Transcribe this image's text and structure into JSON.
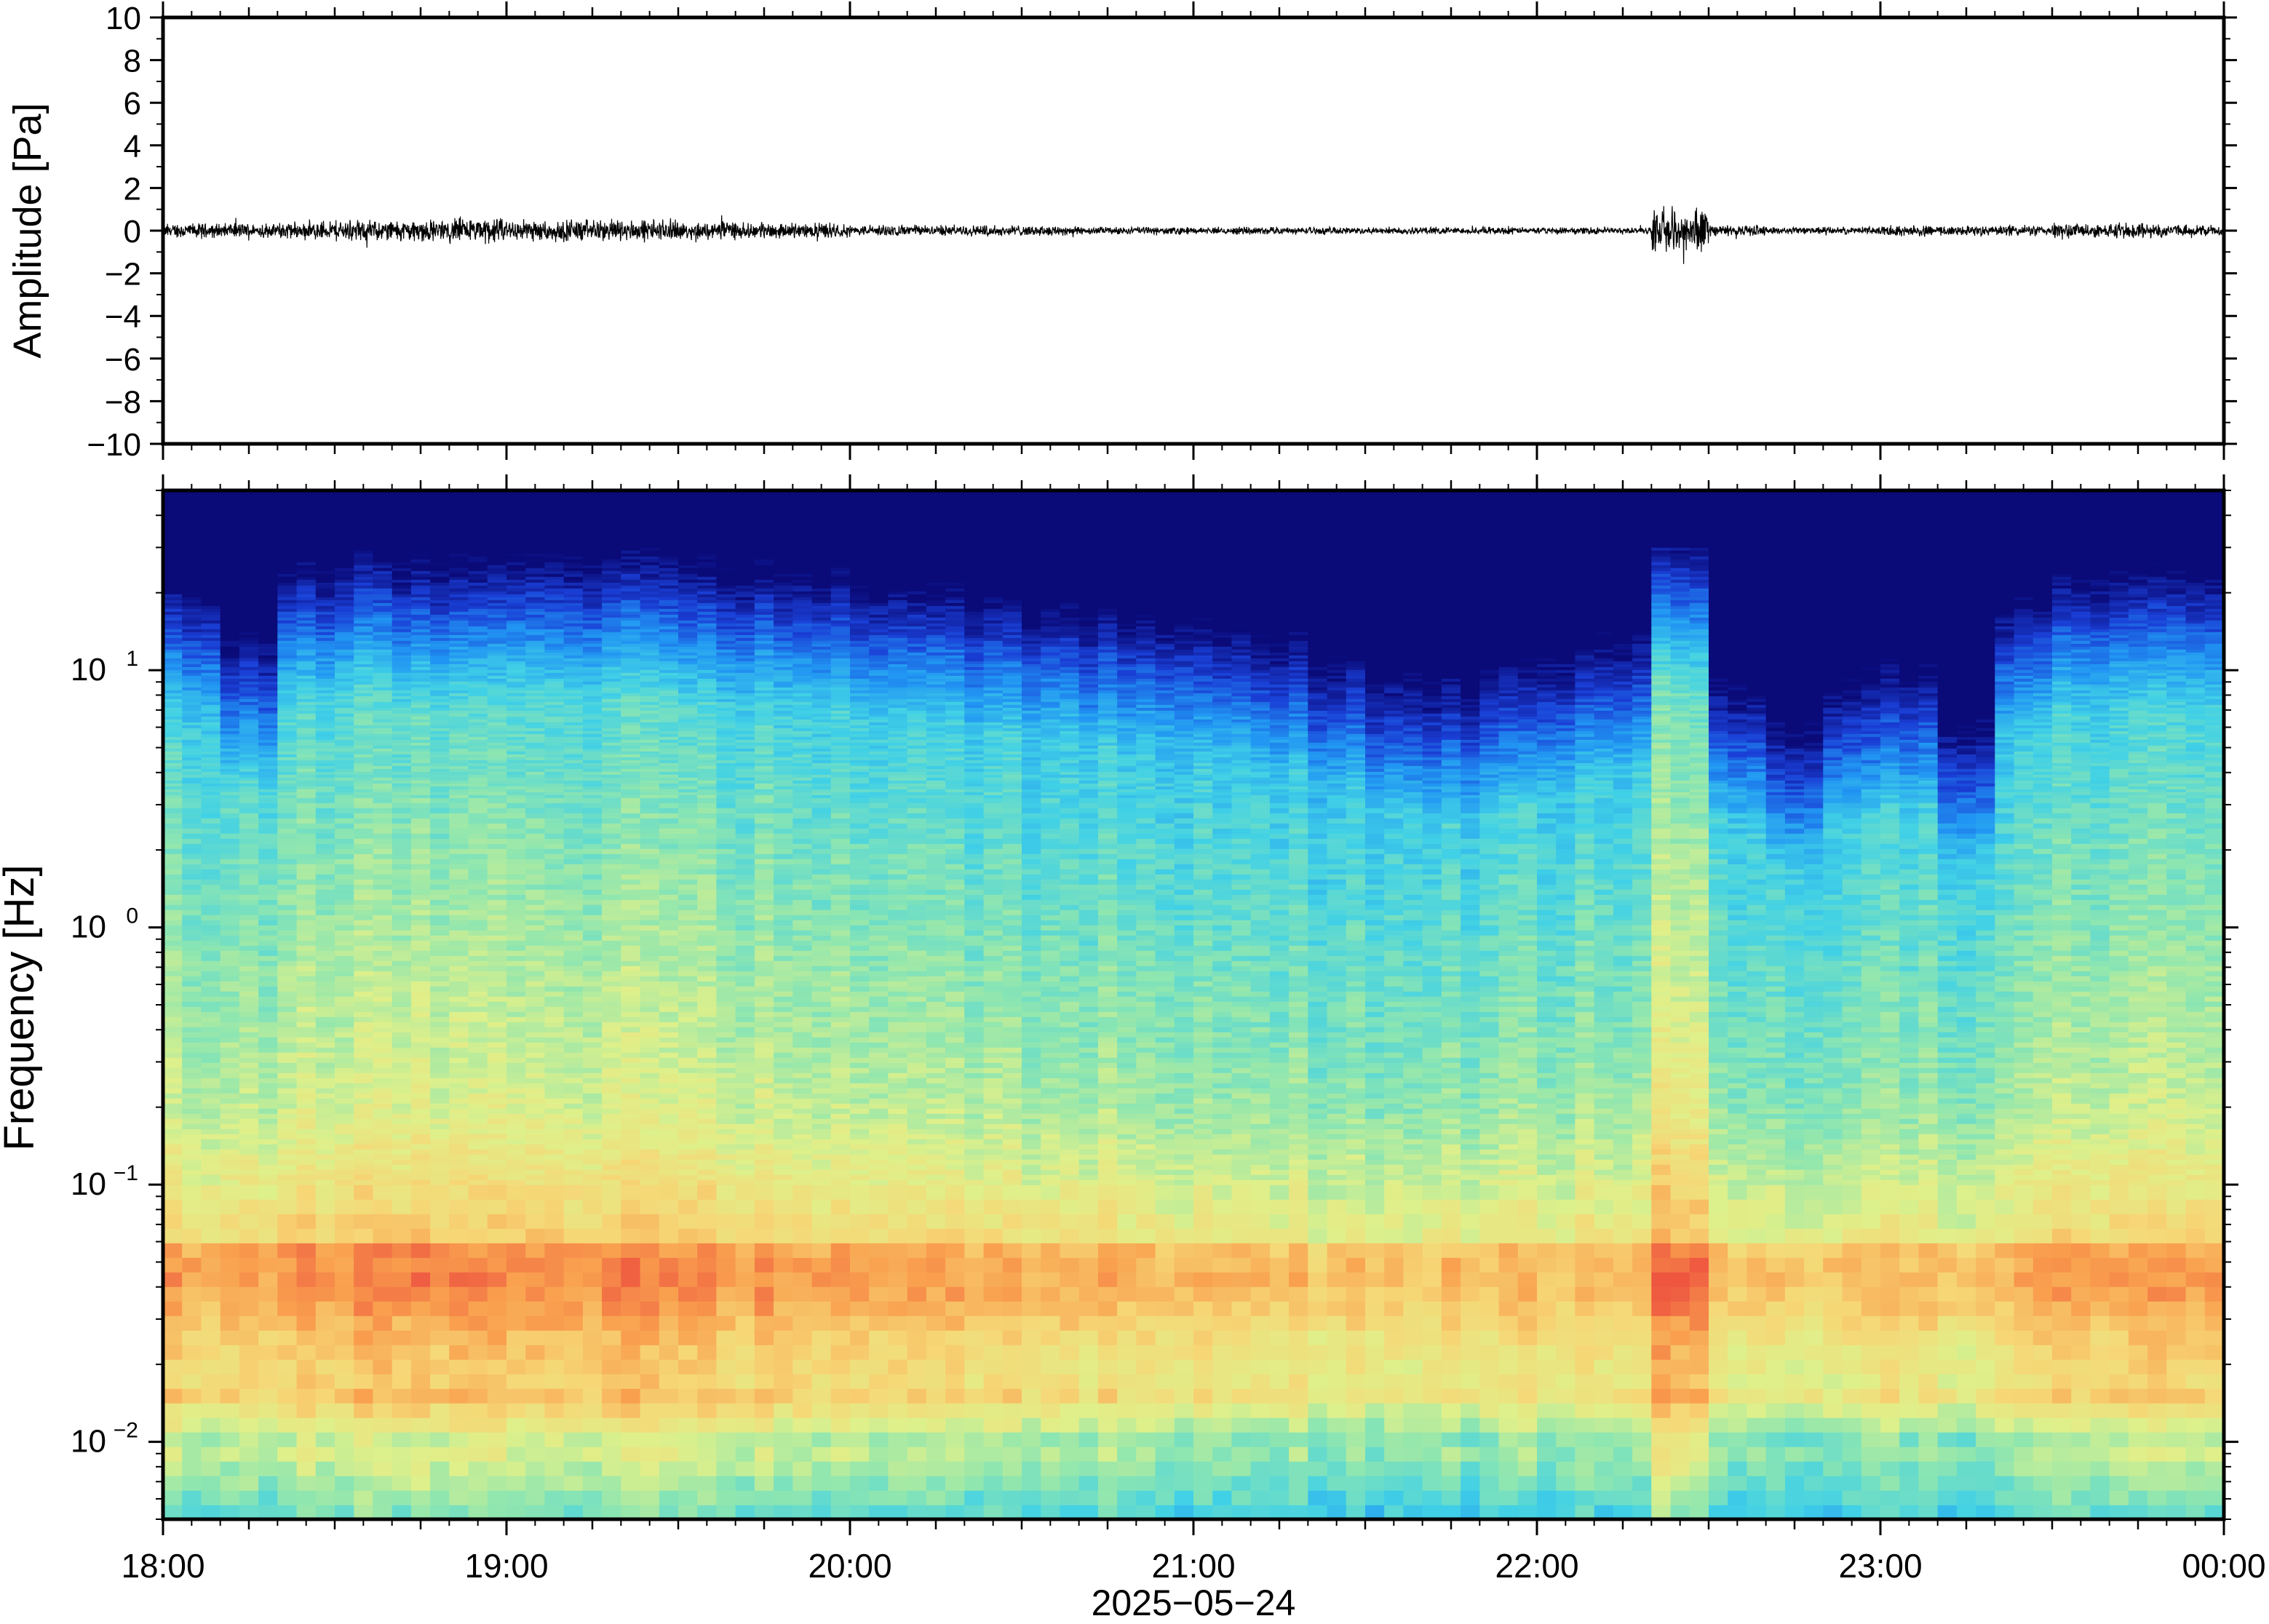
{
  "chart_data": [
    {
      "type": "line",
      "ylabel": "Amplitude [Pa]",
      "ylim": [
        -10,
        10
      ],
      "yticks": [
        -10,
        -8,
        -6,
        -4,
        -2,
        0,
        2,
        4,
        6,
        8,
        10
      ],
      "ytick_labels": [
        "−10",
        "−8",
        "−6",
        "−4",
        "−2",
        "0",
        "2",
        "4",
        "6",
        "8",
        "10"
      ],
      "xlim": [
        "18:00",
        "00:00"
      ],
      "series": [
        {
          "description": "waveform envelope, approx. peak amplitude per 10-minute block (Pa)",
          "x": [
            "18:00",
            "18:10",
            "18:20",
            "18:30",
            "18:40",
            "18:50",
            "19:00",
            "19:10",
            "19:20",
            "19:30",
            "19:40",
            "19:50",
            "20:00",
            "20:10",
            "20:20",
            "20:30",
            "20:40",
            "20:50",
            "21:00",
            "21:10",
            "21:20",
            "21:30",
            "21:40",
            "21:50",
            "22:00",
            "22:10",
            "22:20",
            "22:30",
            "22:40",
            "22:50",
            "23:00",
            "23:10",
            "23:20",
            "23:30",
            "23:40",
            "23:50"
          ],
          "values": [
            0.4,
            0.4,
            0.5,
            0.6,
            0.6,
            0.7,
            0.6,
            0.6,
            0.6,
            0.5,
            0.4,
            0.4,
            0.3,
            0.3,
            0.3,
            0.3,
            0.2,
            0.2,
            0.2,
            0.2,
            0.2,
            0.2,
            0.2,
            0.2,
            0.2,
            0.2,
            1.2,
            0.3,
            0.2,
            0.2,
            0.3,
            0.3,
            0.3,
            0.4,
            0.4,
            0.3
          ],
          "color": "#000000"
        }
      ]
    },
    {
      "type": "heatmap",
      "ylabel": "Frequency [Hz]",
      "yscale": "log",
      "ylim": [
        0.005,
        50
      ],
      "ytick_values": [
        0.01,
        0.1,
        1,
        10
      ],
      "ytick_labels": [
        {
          "base": "10",
          "exp": "−2"
        },
        {
          "base": "10",
          "exp": "−1"
        },
        {
          "base": "10",
          "exp": "0"
        },
        {
          "base": "10",
          "exp": "1"
        }
      ],
      "xlabel": "2025−05−24",
      "x_tick_labels": [
        "18:00",
        "19:00",
        "20:00",
        "21:00",
        "22:00",
        "23:00",
        "00:00"
      ],
      "colormap": [
        "#0a0a78",
        "#1a3fd6",
        "#2196f3",
        "#41d1e6",
        "#8ee6b0",
        "#dff08a",
        "#f6d776",
        "#f9a04e",
        "#ee5640"
      ],
      "description": "energy relative level (0 quiet – 1 strong) per frequency band across time blocks",
      "x": [
        "18:00",
        "18:10",
        "18:20",
        "18:30",
        "18:40",
        "18:50",
        "19:00",
        "19:10",
        "19:20",
        "19:30",
        "19:40",
        "19:50",
        "20:00",
        "20:10",
        "20:20",
        "20:30",
        "20:40",
        "20:50",
        "21:00",
        "21:10",
        "21:20",
        "21:30",
        "21:40",
        "21:50",
        "22:00",
        "22:10",
        "22:20",
        "22:30",
        "22:40",
        "22:50",
        "23:00",
        "23:10",
        "23:20",
        "23:30",
        "23:40",
        "23:50"
      ],
      "upper_cutoff_hz": [
        22,
        12,
        25,
        28,
        25,
        25,
        28,
        28,
        28,
        25,
        25,
        25,
        22,
        22,
        20,
        20,
        18,
        18,
        16,
        14,
        12,
        10,
        9,
        10,
        12,
        14,
        30,
        9,
        6,
        9,
        10,
        6,
        20,
        25,
        25,
        25
      ],
      "disturbance_level": [
        0.55,
        0.55,
        0.6,
        0.62,
        0.63,
        0.65,
        0.63,
        0.63,
        0.63,
        0.6,
        0.58,
        0.56,
        0.52,
        0.52,
        0.5,
        0.5,
        0.48,
        0.47,
        0.46,
        0.44,
        0.42,
        0.42,
        0.43,
        0.45,
        0.46,
        0.48,
        0.7,
        0.44,
        0.4,
        0.44,
        0.46,
        0.4,
        0.5,
        0.55,
        0.56,
        0.55
      ]
    }
  ]
}
